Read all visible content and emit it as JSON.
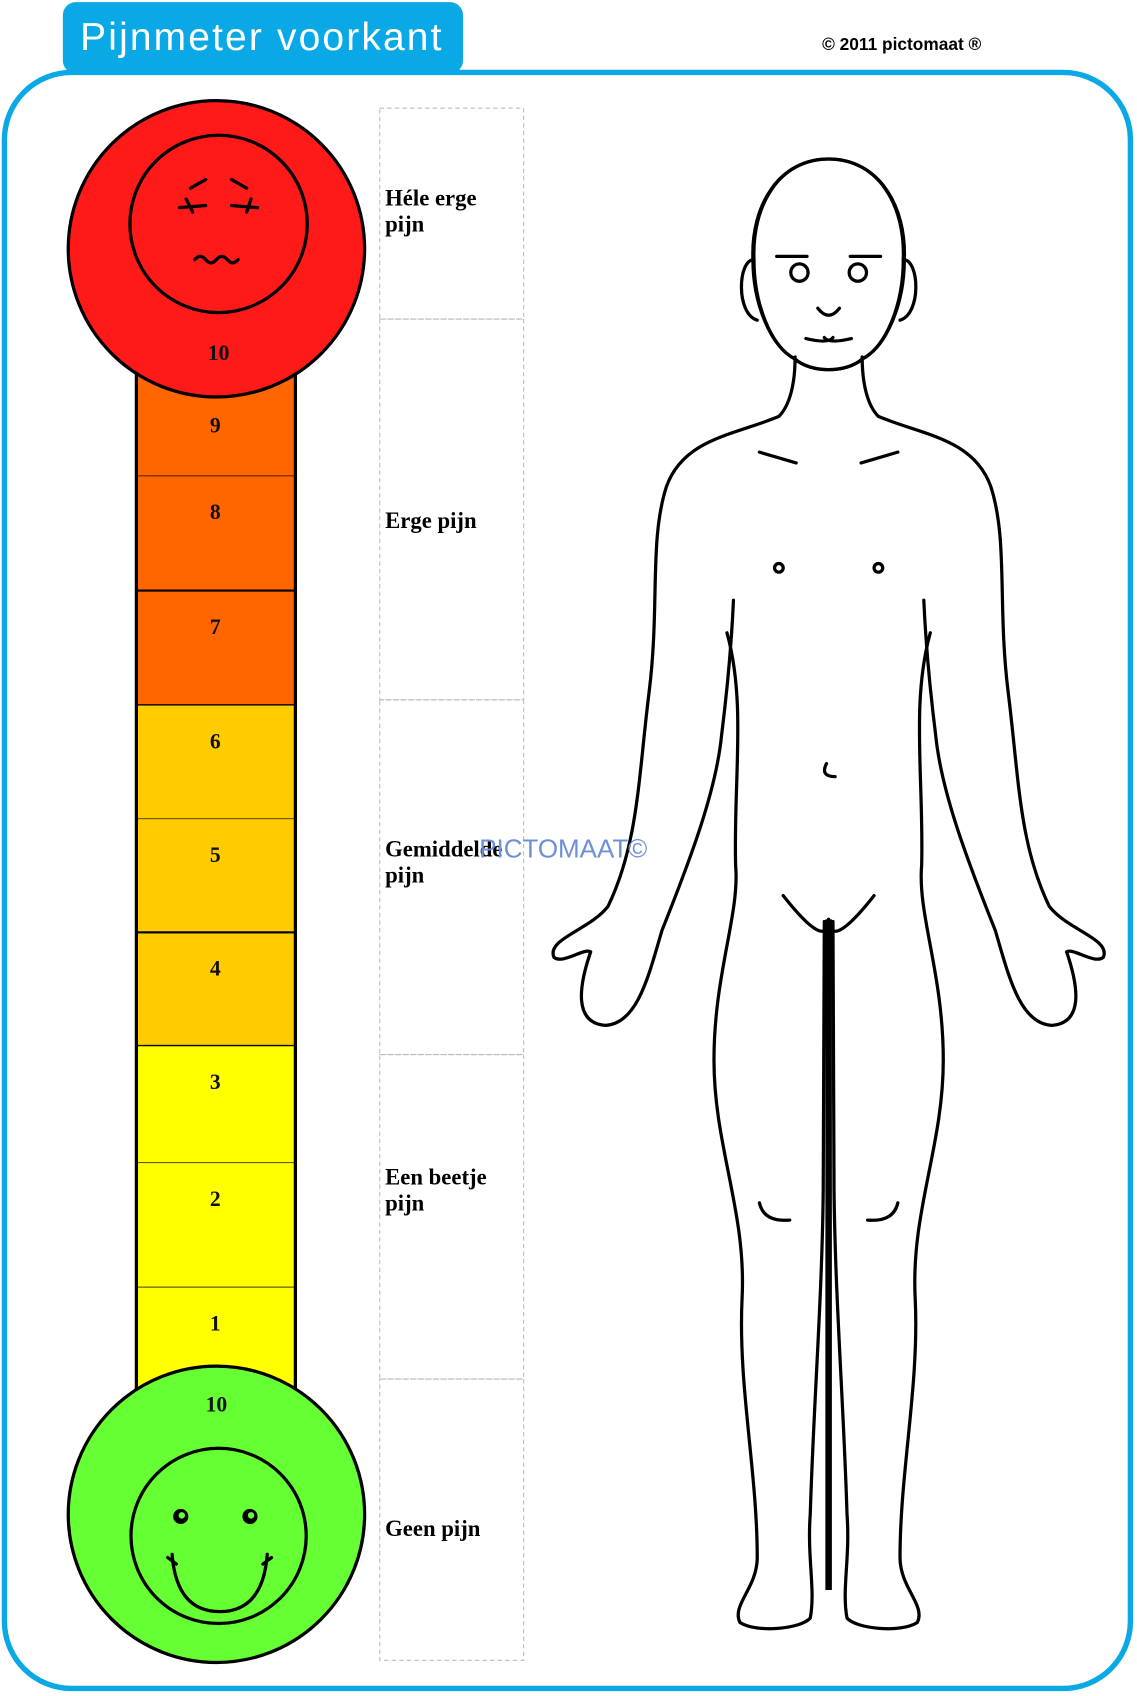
{
  "header": {
    "title": "Pijnmeter  voorkant",
    "copyright": "© 2011 pictomaat ®"
  },
  "colors": {
    "accent": "#0aa9e6",
    "worst": "#ff1a1a",
    "severe": "#ff6600",
    "moderate": "#ffcc00",
    "mild": "#ffff00",
    "none": "#66ff33"
  },
  "scale": {
    "top_label": "10",
    "bottom_label": "10",
    "segments": [
      {
        "value": "9",
        "color": "#ff6600"
      },
      {
        "value": "8",
        "color": "#ff6600"
      },
      {
        "value": "7",
        "color": "#ff6600"
      },
      {
        "value": "6",
        "color": "#ffcc00"
      },
      {
        "value": "5",
        "color": "#ffcc00"
      },
      {
        "value": "4",
        "color": "#ffcc00"
      },
      {
        "value": "3",
        "color": "#ffff00"
      },
      {
        "value": "2",
        "color": "#ffff00"
      },
      {
        "value": "1",
        "color": "#ffff00"
      }
    ],
    "top_face": "pained-face-icon",
    "bottom_face": "smiling-face-icon"
  },
  "labels": [
    {
      "line1": "Héle erge",
      "line2": "pijn"
    },
    {
      "line1": "Erge pijn",
      "line2": ""
    },
    {
      "line1": "Gemiddelde",
      "line2": "pijn"
    },
    {
      "line1": "Een beetje",
      "line2": "pijn"
    },
    {
      "line1": "Geen pijn",
      "line2": ""
    }
  ],
  "watermark": "PICTOMAAT©",
  "figure": "body-front-outline"
}
